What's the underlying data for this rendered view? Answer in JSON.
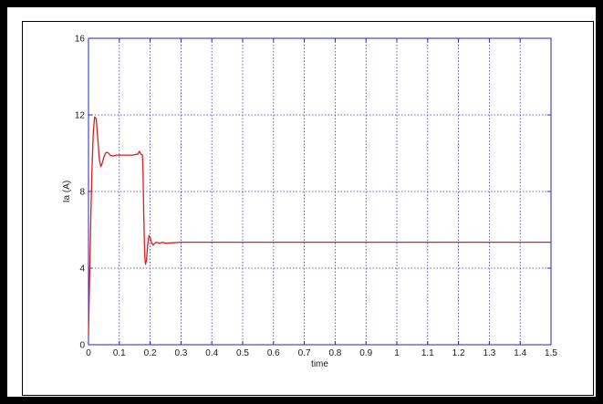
{
  "chart_data": {
    "type": "line",
    "title": "",
    "xlabel": "time",
    "ylabel": "Ia (A)",
    "xlim": [
      0,
      1.5
    ],
    "ylim": [
      0,
      16
    ],
    "x_ticks": [
      0,
      0.1,
      0.2,
      0.3,
      0.4,
      0.5,
      0.6,
      0.7,
      0.8,
      0.9,
      1,
      1.1,
      1.2,
      1.3,
      1.4,
      1.5
    ],
    "x_tick_labels": [
      "0",
      "0.1",
      "0.2",
      "0.3",
      "0.4",
      "0.5",
      "0.6",
      "0.7",
      "0.8",
      "0.9",
      "1",
      "1.1",
      "1.2",
      "1.3",
      "1.4",
      "1.5"
    ],
    "y_ticks": [
      0,
      4,
      8,
      12,
      16
    ],
    "y_tick_labels": [
      "0",
      "4",
      "8",
      "12",
      "16"
    ],
    "grid": true,
    "colors": {
      "line": "#e31a1c",
      "axis": "#2222cc",
      "grid": "#3333cc"
    },
    "series": [
      {
        "x": [
          0,
          0.003,
          0.008,
          0.012,
          0.016,
          0.02,
          0.025,
          0.03,
          0.035,
          0.04,
          0.045,
          0.05,
          0.055,
          0.06,
          0.065,
          0.07,
          0.08,
          0.09,
          0.1,
          0.12,
          0.14,
          0.16,
          0.165,
          0.17,
          0.175,
          0.177,
          0.179,
          0.181,
          0.183,
          0.185,
          0.188,
          0.192,
          0.196,
          0.2,
          0.205,
          0.21,
          0.215,
          0.22,
          0.23,
          0.24,
          0.25,
          0.3,
          0.5,
          0.75,
          1.0,
          1.25,
          1.5
        ],
        "y": [
          0.5,
          3.0,
          7.0,
          9.5,
          11.2,
          11.9,
          11.8,
          10.8,
          9.7,
          9.3,
          9.5,
          9.8,
          10.0,
          10.05,
          10.0,
          9.9,
          9.85,
          9.9,
          9.9,
          9.9,
          9.9,
          9.95,
          10.1,
          9.95,
          9.9,
          9.0,
          7.0,
          5.5,
          4.5,
          4.2,
          4.4,
          5.2,
          5.7,
          5.6,
          5.3,
          5.2,
          5.3,
          5.35,
          5.3,
          5.35,
          5.3,
          5.35,
          5.35,
          5.35,
          5.35,
          5.35,
          5.35
        ]
      }
    ]
  }
}
